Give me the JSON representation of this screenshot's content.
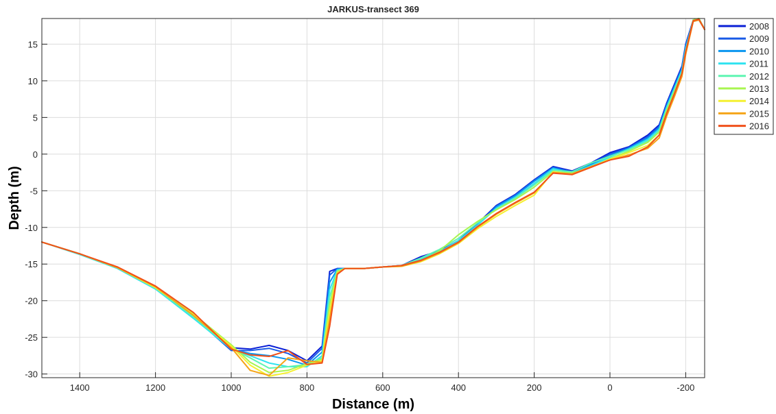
{
  "chart_data": {
    "type": "line",
    "title": "JARKUS-transect 369",
    "xlabel": "Distance (m)",
    "ylabel": "Depth (m)",
    "xlim": [
      1500,
      -250
    ],
    "ylim": [
      -30.5,
      18.5
    ],
    "x_reversed": true,
    "xticks": [
      1400,
      1200,
      1000,
      800,
      600,
      400,
      200,
      0,
      -200
    ],
    "yticks": [
      15,
      10,
      5,
      0,
      -5,
      -10,
      -15,
      -20,
      -25,
      -30
    ],
    "grid": true,
    "legend": "top-right",
    "x": [
      1500,
      1400,
      1300,
      1200,
      1100,
      1000,
      950,
      900,
      850,
      800,
      760,
      740,
      720,
      700,
      650,
      600,
      550,
      500,
      450,
      400,
      350,
      300,
      250,
      200,
      150,
      100,
      50,
      0,
      -50,
      -100,
      -130,
      -150,
      -170,
      -190,
      -200,
      -220,
      -235,
      -250
    ],
    "series": [
      {
        "name": "2008",
        "color": "#0a1fd6",
        "values": [
          -12,
          -13.6,
          -15.5,
          -18.2,
          -22,
          -26.4,
          -26.6,
          -26.1,
          -26.8,
          -28.2,
          -26.2,
          -16,
          -15.6,
          -15.6,
          -15.6,
          -15.4,
          -15.2,
          -14,
          -13.2,
          -11.8,
          -9.5,
          -7,
          -5.5,
          -3.5,
          -1.7,
          -2.3,
          -1.2,
          0.2,
          1,
          2.6,
          4,
          7,
          9.5,
          12,
          15,
          18.3,
          18.5,
          17
        ]
      },
      {
        "name": "2009",
        "color": "#1a5be6",
        "values": [
          -12,
          -13.6,
          -15.5,
          -18.3,
          -22.2,
          -26.8,
          -26.8,
          -26.5,
          -27.2,
          -28.5,
          -26.5,
          -16.5,
          -15.6,
          -15.6,
          -15.6,
          -15.4,
          -15.2,
          -14.2,
          -13.3,
          -12,
          -9.6,
          -7.1,
          -5.6,
          -3.6,
          -1.8,
          -2.4,
          -1.3,
          0,
          0.9,
          2.4,
          3.8,
          6.8,
          9.3,
          11.8,
          14.8,
          18.2,
          18.4,
          17
        ]
      },
      {
        "name": "2010",
        "color": "#0a96ef",
        "values": [
          -12,
          -13.6,
          -15.6,
          -18.4,
          -22.3,
          -26.6,
          -27.2,
          -27.5,
          -28,
          -28.8,
          -27,
          -17.5,
          -15.7,
          -15.6,
          -15.6,
          -15.4,
          -15.2,
          -14.3,
          -13.4,
          -12.1,
          -9.7,
          -7.2,
          -5.7,
          -3.7,
          -1.9,
          -2.5,
          -1.4,
          -0.2,
          0.8,
          2.2,
          3.6,
          6.6,
          9.1,
          11.6,
          14.6,
          18.1,
          18.3,
          17
        ]
      },
      {
        "name": "2011",
        "color": "#30e3f0",
        "values": [
          -12,
          -13.7,
          -15.6,
          -18.4,
          -22.4,
          -26.6,
          -27.5,
          -28.5,
          -29,
          -29,
          -27.5,
          -18.5,
          -15.8,
          -15.6,
          -15.6,
          -15.4,
          -15.2,
          -14.3,
          -13.3,
          -11.8,
          -9.7,
          -7.4,
          -5.9,
          -4,
          -2,
          -2.6,
          -1.6,
          -0.4,
          0.7,
          2,
          3.4,
          6.4,
          8.9,
          11.4,
          14.4,
          18.2,
          18.4,
          17
        ]
      },
      {
        "name": "2012",
        "color": "#5ef5b2",
        "values": [
          -12,
          -13.6,
          -15.5,
          -18.3,
          -22.2,
          -26.5,
          -27.8,
          -29.2,
          -29,
          -28.7,
          -27.8,
          -19.5,
          -15.9,
          -15.6,
          -15.6,
          -15.4,
          -15.2,
          -14.2,
          -13,
          -11.5,
          -9.4,
          -7.5,
          -6,
          -4.2,
          -2.2,
          -2.4,
          -1.2,
          -0.3,
          0.6,
          1.8,
          3.2,
          6.2,
          8.7,
          11.2,
          14.2,
          18.3,
          18.5,
          17
        ]
      },
      {
        "name": "2013",
        "color": "#a8f550",
        "values": [
          -12,
          -13.6,
          -15.5,
          -18.2,
          -21.8,
          -26,
          -28.4,
          -29.8,
          -29.5,
          -28.6,
          -28,
          -20.5,
          -16,
          -15.6,
          -15.6,
          -15.4,
          -15.3,
          -14.6,
          -13.2,
          -11,
          -9.2,
          -7.6,
          -6.2,
          -4.5,
          -2.4,
          -2.6,
          -1.8,
          -0.6,
          0.4,
          1.6,
          3,
          6,
          8.5,
          11,
          14,
          18.3,
          18.5,
          17
        ]
      },
      {
        "name": "2014",
        "color": "#f5f030",
        "values": [
          -12,
          -13.6,
          -15.5,
          -18.2,
          -21.9,
          -26.2,
          -28.8,
          -30.3,
          -29.8,
          -28.8,
          -28.2,
          -21.5,
          -16.2,
          -15.6,
          -15.6,
          -15.4,
          -15.3,
          -14.7,
          -13.6,
          -12.2,
          -10.2,
          -8.5,
          -7,
          -5.6,
          -2.4,
          -2.8,
          -1.8,
          -0.7,
          0.2,
          1.2,
          2.6,
          5.6,
          8.1,
          10.8,
          13.8,
          18.2,
          18.4,
          17
        ]
      },
      {
        "name": "2015",
        "color": "#f5a418",
        "values": [
          -12,
          -13.6,
          -15.5,
          -18.1,
          -22,
          -26.4,
          -29.5,
          -30.2,
          -27.8,
          -28.2,
          -28.4,
          -22.5,
          -16.3,
          -15.6,
          -15.6,
          -15.4,
          -15.3,
          -14.6,
          -13.5,
          -12.1,
          -10,
          -8.2,
          -6.7,
          -5.3,
          -2.5,
          -2.7,
          -1.7,
          -0.8,
          -0.1,
          0.8,
          2.2,
          5.2,
          7.8,
          10.6,
          13.6,
          18.1,
          18.3,
          17
        ]
      },
      {
        "name": "2016",
        "color": "#f0501a",
        "values": [
          -12,
          -13.6,
          -15.4,
          -18,
          -21.6,
          -26.6,
          -27.4,
          -27.6,
          -26.8,
          -28.7,
          -28.5,
          -23.5,
          -16.4,
          -15.6,
          -15.6,
          -15.4,
          -15.2,
          -14.5,
          -13.4,
          -12,
          -9.9,
          -8.1,
          -6.6,
          -5.2,
          -2.6,
          -2.8,
          -1.8,
          -0.8,
          -0.3,
          1,
          2.6,
          5.6,
          8.2,
          11,
          14,
          18.2,
          18.4,
          17
        ]
      }
    ]
  }
}
